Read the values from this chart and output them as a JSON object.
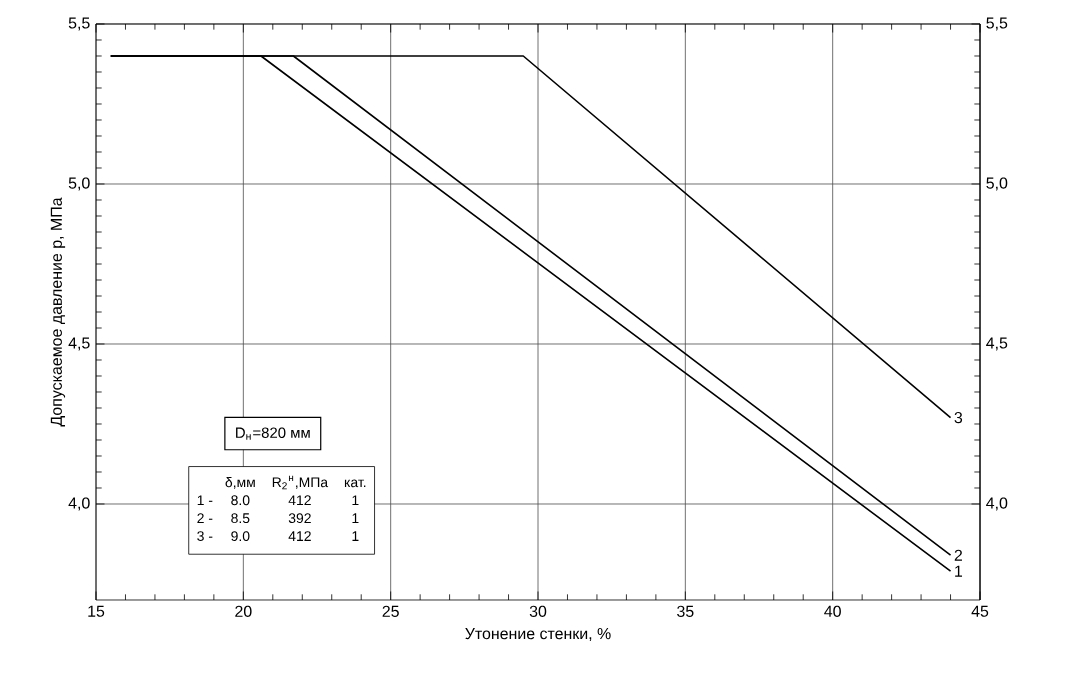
{
  "chart_data": {
    "type": "line",
    "xlabel": "Утонение стенки, %",
    "ylabel": "Допускаемое давление р, МПа",
    "xlim": [
      15,
      45
    ],
    "xticks": [
      15,
      20,
      25,
      30,
      35,
      40,
      45
    ],
    "ylim": [
      3.7,
      5.5
    ],
    "yticks": [
      {
        "value": 4.0,
        "label": "4,0"
      },
      {
        "value": 4.5,
        "label": "4,5"
      },
      {
        "value": 5.0,
        "label": "5,0"
      },
      {
        "value": 5.5,
        "label": "5,5"
      }
    ],
    "y2lim": [
      3.7,
      5.5
    ],
    "y2ticks": [
      {
        "value": 4.0,
        "label": "4,0"
      },
      {
        "value": 4.5,
        "label": "4,5"
      },
      {
        "value": 5.0,
        "label": "5,0"
      },
      {
        "value": 5.5,
        "label": "5,5"
      }
    ],
    "grid": true,
    "marker": "none",
    "line_style": "solid",
    "series": [
      {
        "name": "1",
        "color": "#000000",
        "x": [
          15.5,
          20.6,
          44
        ],
        "values": [
          5.4,
          5.4,
          3.79
        ]
      },
      {
        "name": "2",
        "color": "#000000",
        "x": [
          15.5,
          21.7,
          44
        ],
        "values": [
          5.4,
          5.4,
          3.84
        ]
      },
      {
        "name": "3",
        "color": "#000000",
        "x": [
          15.5,
          29.5,
          44
        ],
        "values": [
          5.4,
          5.4,
          4.27
        ]
      }
    ],
    "annotations": [
      "D$_{н}$=820 мм",
      "δ,мм",
      "R$_{2}$$^{н}$,МПа",
      "кат.",
      "1 -",
      "8.0",
      "412",
      "1",
      "2 -",
      "8.5",
      "392",
      "1",
      "3 -",
      "9.0",
      "412",
      "1"
    ]
  }
}
